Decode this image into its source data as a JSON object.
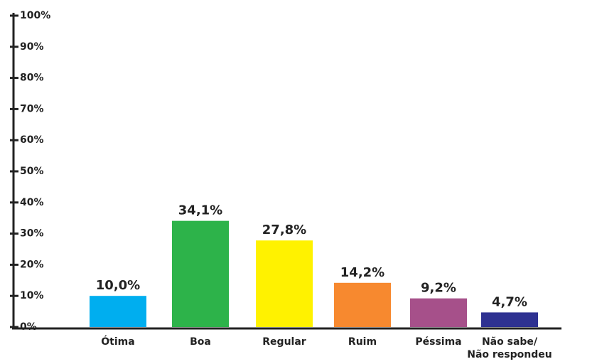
{
  "chart_data": {
    "type": "bar",
    "categories": [
      "Ótima",
      "Boa",
      "Regular",
      "Ruim",
      "Péssima",
      "Não sabe/\nNão respondeu"
    ],
    "values": [
      10.0,
      34.1,
      27.8,
      14.2,
      9.2,
      4.7
    ],
    "value_labels": [
      "10,0%",
      "34,1%",
      "27,8%",
      "14,2%",
      "9,2%",
      "4,7%"
    ],
    "colors": [
      "#00aeef",
      "#2db34a",
      "#fff200",
      "#f7892f",
      "#a6508a",
      "#2e3191"
    ],
    "ylim": [
      0,
      100
    ],
    "yticks": [
      {
        "value": 0,
        "label": "0%"
      },
      {
        "value": 10,
        "label": "10%"
      },
      {
        "value": 20,
        "label": "20%"
      },
      {
        "value": 30,
        "label": "30%"
      },
      {
        "value": 40,
        "label": "40%"
      },
      {
        "value": 50,
        "label": "50%"
      },
      {
        "value": 60,
        "label": "60%"
      },
      {
        "value": 70,
        "label": "70%"
      },
      {
        "value": 80,
        "label": "80%"
      },
      {
        "value": 90,
        "label": "90%"
      },
      {
        "value": 100,
        "label": "100%"
      }
    ]
  }
}
